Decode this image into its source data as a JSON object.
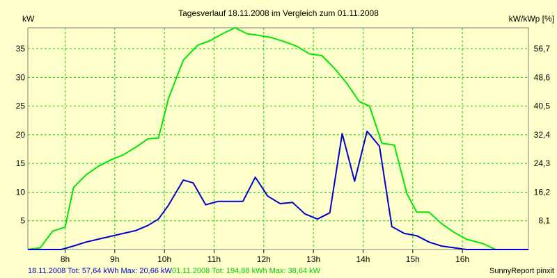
{
  "chart_data": {
    "type": "line",
    "title": "Tagesverlauf 18.11.2008 im Vergleich zum 01.11.2008",
    "y_left_label": "kW",
    "y_right_label": "kW/kWp [%]",
    "x_ticks": [
      {
        "label": "8h",
        "x": 8.0
      },
      {
        "label": "9h",
        "x": 9.0
      },
      {
        "label": "10h",
        "x": 10.0
      },
      {
        "label": "11h",
        "x": 11.0
      },
      {
        "label": "12h",
        "x": 12.0
      },
      {
        "label": "13h",
        "x": 13.0
      },
      {
        "label": "14h",
        "x": 14.0
      },
      {
        "label": "15h",
        "x": 15.0
      },
      {
        "label": "16h",
        "x": 16.0
      }
    ],
    "xlim": [
      7.25,
      17.33
    ],
    "ylim": [
      0,
      38.64
    ],
    "y_left_ticks": [
      {
        "label": "5",
        "value": 5
      },
      {
        "label": "10",
        "value": 10
      },
      {
        "label": "15",
        "value": 15
      },
      {
        "label": "20",
        "value": 20
      },
      {
        "label": "25",
        "value": 25
      },
      {
        "label": "30",
        "value": 30
      },
      {
        "label": "35",
        "value": 35
      }
    ],
    "y_right_ticks": [
      {
        "label": "8,1",
        "value": 5.0
      },
      {
        "label": "16,2",
        "value": 10.0
      },
      {
        "label": "24,3",
        "value": 15.0
      },
      {
        "label": "32,4",
        "value": 20.0
      },
      {
        "label": "40,5",
        "value": 25.0
      },
      {
        "label": "48,6",
        "value": 30.0
      },
      {
        "label": "56,7",
        "value": 35.0
      }
    ],
    "grid": true,
    "series": [
      {
        "date": "01.11.2008",
        "color": "#00e600",
        "points": [
          [
            7.25,
            0.0
          ],
          [
            7.5,
            0.3
          ],
          [
            7.75,
            3.2
          ],
          [
            8.0,
            3.9
          ],
          [
            8.17,
            10.8
          ],
          [
            8.42,
            13.0
          ],
          [
            8.67,
            14.5
          ],
          [
            8.92,
            15.6
          ],
          [
            9.17,
            16.5
          ],
          [
            9.42,
            17.8
          ],
          [
            9.67,
            19.3
          ],
          [
            9.88,
            19.4
          ],
          [
            10.08,
            26.3
          ],
          [
            10.38,
            33.0
          ],
          [
            10.67,
            35.6
          ],
          [
            10.92,
            36.4
          ],
          [
            11.17,
            37.6
          ],
          [
            11.42,
            38.64
          ],
          [
            11.67,
            37.6
          ],
          [
            11.92,
            37.3
          ],
          [
            12.17,
            36.9
          ],
          [
            12.42,
            36.2
          ],
          [
            12.67,
            35.4
          ],
          [
            12.92,
            34.1
          ],
          [
            13.17,
            33.8
          ],
          [
            13.42,
            31.6
          ],
          [
            13.67,
            29.0
          ],
          [
            13.92,
            25.8
          ],
          [
            14.13,
            25.0
          ],
          [
            14.38,
            18.5
          ],
          [
            14.63,
            18.2
          ],
          [
            14.88,
            9.8
          ],
          [
            15.08,
            6.5
          ],
          [
            15.33,
            6.5
          ],
          [
            15.58,
            4.5
          ],
          [
            15.83,
            3.0
          ],
          [
            16.08,
            1.8
          ],
          [
            16.42,
            1.0
          ],
          [
            16.67,
            0.0
          ],
          [
            17.33,
            0.0
          ]
        ]
      },
      {
        "date": "18.11.2008",
        "color": "#0000cc",
        "points": [
          [
            7.25,
            0.0
          ],
          [
            7.92,
            0.0
          ],
          [
            8.17,
            0.6
          ],
          [
            8.42,
            1.3
          ],
          [
            8.67,
            1.8
          ],
          [
            8.92,
            2.3
          ],
          [
            9.17,
            2.8
          ],
          [
            9.42,
            3.3
          ],
          [
            9.67,
            4.2
          ],
          [
            9.88,
            5.3
          ],
          [
            10.08,
            7.7
          ],
          [
            10.38,
            12.1
          ],
          [
            10.58,
            11.6
          ],
          [
            10.83,
            7.8
          ],
          [
            11.08,
            8.4
          ],
          [
            11.33,
            8.4
          ],
          [
            11.58,
            8.4
          ],
          [
            11.83,
            12.6
          ],
          [
            12.08,
            9.3
          ],
          [
            12.33,
            8.0
          ],
          [
            12.58,
            8.2
          ],
          [
            12.83,
            6.2
          ],
          [
            13.08,
            5.3
          ],
          [
            13.33,
            6.4
          ],
          [
            13.58,
            20.2
          ],
          [
            13.83,
            11.9
          ],
          [
            14.08,
            20.6
          ],
          [
            14.33,
            18.0
          ],
          [
            14.58,
            4.0
          ],
          [
            14.83,
            2.8
          ],
          [
            15.08,
            2.4
          ],
          [
            15.33,
            1.3
          ],
          [
            15.58,
            0.6
          ],
          [
            15.83,
            0.3
          ],
          [
            16.08,
            0.0
          ],
          [
            17.33,
            0.0
          ]
        ]
      }
    ]
  },
  "footer": {
    "series_blue": "18.11.2008 Tot: 57,64 kWh Max: 20,66 kW",
    "series_green": "01.11.2008 Tot: 194,88 kWh Max: 38,64 kW",
    "credit": "SunnyReport pinxit"
  },
  "colors": {
    "background": "#ffffcc",
    "grid": "#00cc00",
    "axis": "#808080"
  }
}
